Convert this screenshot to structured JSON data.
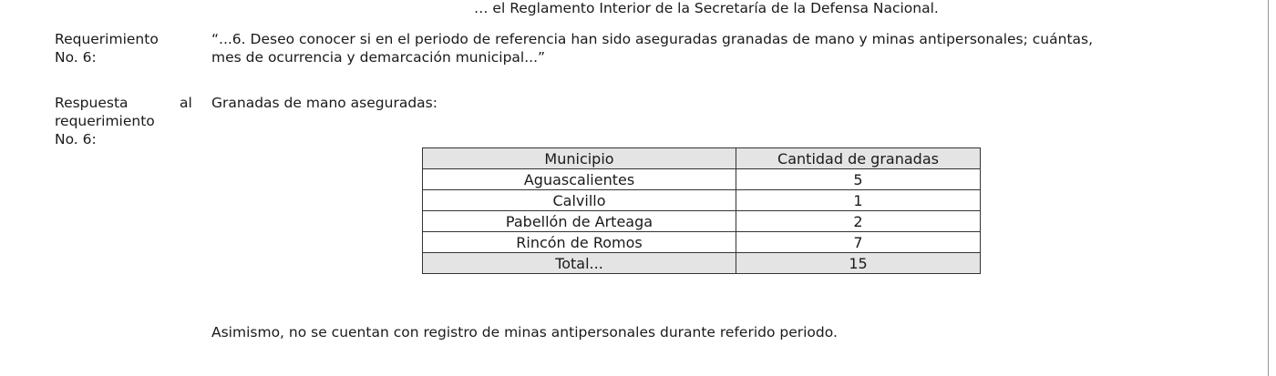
{
  "top_line": "… el Reglamento Interior de la Secretaría de la Defensa Nacional.",
  "request": {
    "label_line1": "Requerimiento",
    "label_line2": "No. 6:",
    "text_line1": "“...6. Deseo conocer si en el periodo de referencia han sido aseguradas granadas de mano y minas antipersonales; cuántas,",
    "text_line2": "mes de ocurrencia y demarcación municipal...”"
  },
  "response": {
    "label_line1": "Respuesta",
    "label_al": "al",
    "label_line2": "requerimiento",
    "label_line3": "No. 6:",
    "intro": "Granadas de mano aseguradas:",
    "closing": "Asimismo, no se cuentan con registro de minas antipersonales durante referido periodo."
  },
  "table": {
    "headers": [
      "Municipio",
      "Cantidad de granadas"
    ],
    "rows": [
      [
        "Aguascalientes",
        "5"
      ],
      [
        "Calvillo",
        "1"
      ],
      [
        "Pabellón de Arteaga",
        "2"
      ],
      [
        "Rincón de Romos",
        "7"
      ]
    ],
    "total": [
      "Total...",
      "15"
    ]
  }
}
